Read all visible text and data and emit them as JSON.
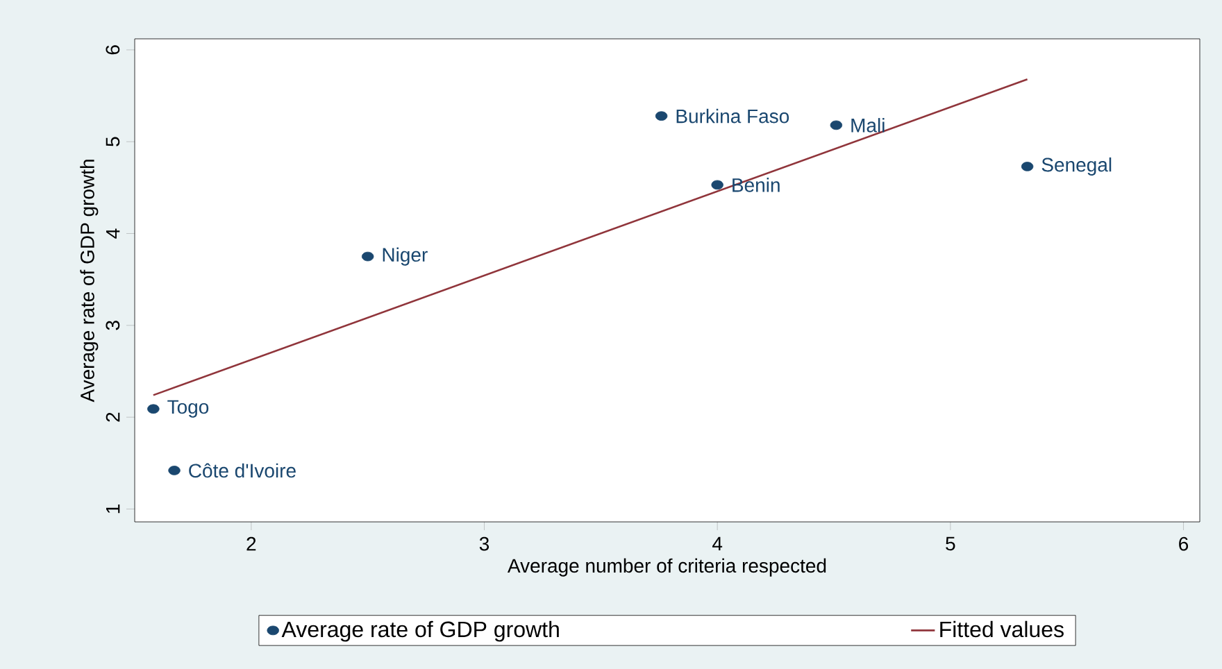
{
  "chart_data": {
    "type": "scatter",
    "xlabel": "Average number of criteria respected",
    "ylabel": "Average rate of GDP growth",
    "xlim": [
      1.5,
      6.07
    ],
    "ylim": [
      0.86,
      6.12
    ],
    "xticks": [
      2,
      3,
      4,
      5,
      6
    ],
    "yticks": [
      1,
      2,
      3,
      4,
      5,
      6
    ],
    "marker": "circle",
    "legend": "bottom",
    "grid": false,
    "series": [
      {
        "name": "Average rate of GDP growth",
        "color": "#1a476f",
        "x": [
          1.58,
          1.67,
          2.5,
          3.76,
          4.0,
          4.51,
          5.33
        ],
        "values": [
          2.09,
          1.42,
          3.75,
          5.28,
          4.53,
          5.18,
          4.73
        ]
      },
      {
        "name": "Fitted values",
        "type": "line",
        "marker": "none",
        "color": "#90353b",
        "x": [
          1.58,
          5.33
        ],
        "values": [
          2.24,
          5.68
        ]
      }
    ],
    "annotations": [
      {
        "text": "Togo",
        "x": 1.58,
        "y": 2.09
      },
      {
        "text": "Côte d'Ivoire",
        "x": 1.67,
        "y": 1.42
      },
      {
        "text": "Niger",
        "x": 2.5,
        "y": 3.75
      },
      {
        "text": "Burkina Faso",
        "x": 3.76,
        "y": 5.28
      },
      {
        "text": "Benin",
        "x": 4.0,
        "y": 4.53
      },
      {
        "text": "Mali",
        "x": 4.51,
        "y": 5.18
      },
      {
        "text": "Senegal",
        "x": 5.33,
        "y": 4.73
      }
    ]
  }
}
